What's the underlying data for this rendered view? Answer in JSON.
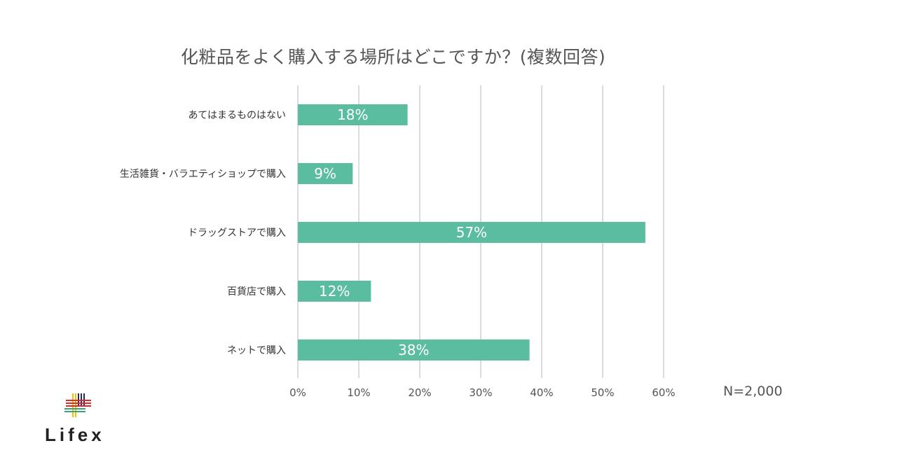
{
  "chart_data": {
    "type": "bar",
    "orientation": "horizontal",
    "title": "化粧品をよく購入する場所はどこですか？(複数回答)",
    "categories": [
      "あてはまるものはない",
      "生活雑貨・バラエティショップで購入",
      "ドラッグストアで購入",
      "百貨店で購入",
      "ネットで購入"
    ],
    "values": [
      18,
      9,
      57,
      12,
      38
    ],
    "data_labels": [
      "18%",
      "9%",
      "57%",
      "12%",
      "38%"
    ],
    "x_ticks": [
      "0%",
      "10%",
      "20%",
      "30%",
      "40%",
      "50%",
      "60%"
    ],
    "xlim": [
      0,
      60
    ],
    "grid": true,
    "bar_color": "#5bbd9f",
    "note": "N=2,000"
  },
  "logo": {
    "text": "Lifex"
  }
}
